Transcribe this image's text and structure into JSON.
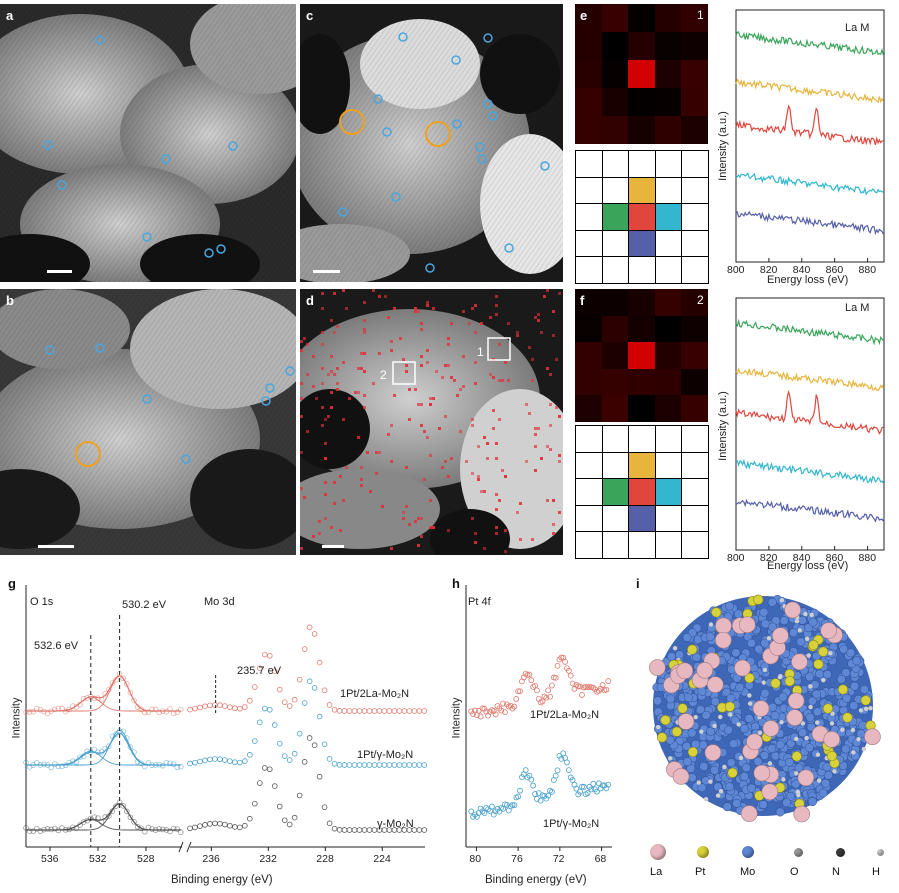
{
  "colors": {
    "spectrum_green": "#3aa55a",
    "spectrum_yellow": "#e8b53c",
    "spectrum_red": "#e0463c",
    "spectrum_cyan": "#33b7cf",
    "spectrum_blue": "#5560a8",
    "xps_red": "#e07a6e",
    "xps_blue": "#4aa0cc",
    "xps_gray": "#555555",
    "circle_blue": "#49a6df",
    "circle_orange": "#f0a020"
  },
  "panels": {
    "a": {
      "label": "a"
    },
    "b": {
      "label": "b"
    },
    "c": {
      "label": "c"
    },
    "d": {
      "label": "d",
      "box1": "1",
      "box2": "2"
    },
    "e": {
      "label": "e",
      "index": "1"
    },
    "f": {
      "label": "f",
      "index": "2"
    },
    "g": {
      "label": "g"
    },
    "h": {
      "label": "h"
    },
    "i": {
      "label": "i"
    }
  },
  "eels": {
    "title": "La M",
    "xlabel": "Energy loss (eV)",
    "ylabel": "Intensity (a.u.)",
    "ticks": [
      "800",
      "820",
      "840",
      "860",
      "880"
    ]
  },
  "xps_g": {
    "o1s_title": "O 1s",
    "mo3d_title": "Mo 3d",
    "peak1": "532.6 eV",
    "peak2": "530.2 eV",
    "peak3": "235.7 eV",
    "ylabel": "Intensity",
    "xlabel": "Binding energy (eV)",
    "ticks_left": [
      "536",
      "532",
      "528"
    ],
    "ticks_right": [
      "236",
      "232",
      "228",
      "224"
    ],
    "series": [
      "1Pt/2La-Mo₂N",
      "1Pt/γ-Mo₂N",
      "γ-Mo₂N"
    ]
  },
  "xps_h": {
    "title": "Pt 4f",
    "ylabel": "Intensity",
    "xlabel": "Binding energy (eV)",
    "ticks": [
      "80",
      "76",
      "72",
      "68"
    ],
    "series": [
      "1Pt/2La-Mo₂N",
      "1Pt/γ-Mo₂N"
    ]
  },
  "legend_i": {
    "items": [
      "La",
      "Pt",
      "Mo",
      "O",
      "N",
      "H"
    ]
  },
  "chart_data": [
    {
      "type": "line",
      "title": "La M",
      "xlabel": "Energy loss (eV)",
      "ylabel": "Intensity (a.u.)",
      "xlim": [
        800,
        890
      ],
      "series": [
        {
          "color": "green",
          "peaks": []
        },
        {
          "color": "yellow",
          "peaks": []
        },
        {
          "color": "red",
          "peaks": [
            832,
            849
          ]
        },
        {
          "color": "cyan",
          "peaks": []
        },
        {
          "color": "blue",
          "peaks": []
        }
      ]
    },
    {
      "type": "scatter",
      "xlabel": "Binding energy (eV)",
      "ylabel": "Intensity",
      "series": [
        {
          "name": "1Pt/2La-Mo₂N",
          "o1s_peaks": [
            532.6,
            530.2
          ],
          "mo3d_peaks": [
            232.2,
            229.0
          ]
        },
        {
          "name": "1Pt/γ-Mo₂N",
          "o1s_peaks": [
            532.6,
            530.2
          ],
          "mo3d_peaks": [
            232.2,
            229.0
          ]
        },
        {
          "name": "γ-Mo₂N",
          "o1s_peaks": [
            532.6,
            530.2
          ],
          "mo3d_peaks": [
            232.2,
            229.0
          ]
        }
      ]
    },
    {
      "type": "scatter",
      "title": "Pt 4f",
      "xlabel": "Binding energy (eV)",
      "ylabel": "Intensity",
      "xlim": [
        81,
        67
      ],
      "series": [
        {
          "name": "1Pt/2La-Mo₂N",
          "peaks": [
            75.2,
            71.8
          ]
        },
        {
          "name": "1Pt/γ-Mo₂N",
          "peaks": [
            75.2,
            71.8
          ]
        }
      ]
    }
  ]
}
